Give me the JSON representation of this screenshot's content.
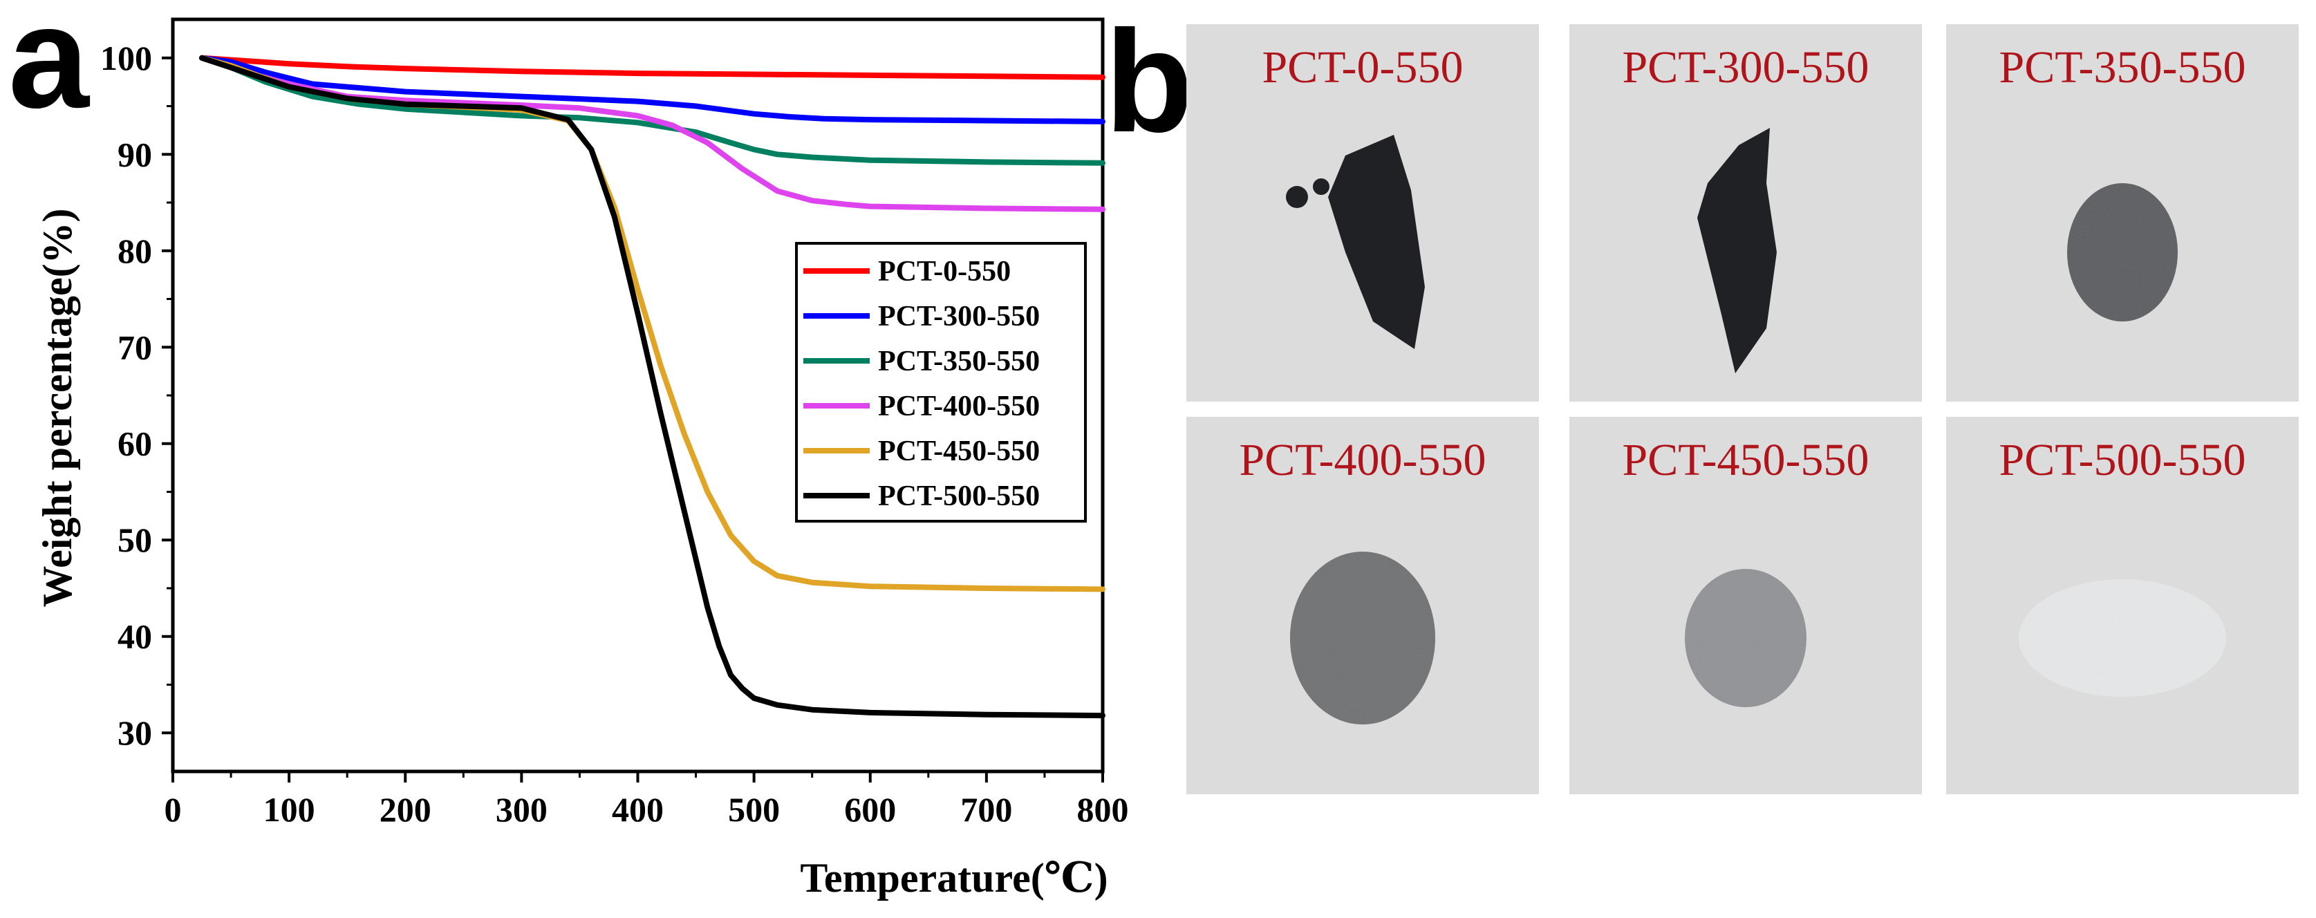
{
  "panel_a_label": "a",
  "panel_b_label": "b",
  "chart_data": {
    "type": "line",
    "title": "",
    "xlabel": "Temperature(℃)",
    "ylabel": "Weight percentage(%)",
    "xlim": [
      0,
      800
    ],
    "ylim": [
      26,
      104
    ],
    "xticks": [
      0,
      100,
      200,
      300,
      400,
      500,
      600,
      700,
      800
    ],
    "yticks": [
      30,
      40,
      50,
      60,
      70,
      80,
      90,
      100
    ],
    "grid": false,
    "legend_position": "center-right",
    "series": [
      {
        "name": "PCT-0-550",
        "color": "#ff0000",
        "x": [
          25,
          50,
          100,
          150,
          200,
          300,
          400,
          500,
          600,
          700,
          800
        ],
        "y": [
          100,
          99.8,
          99.4,
          99.1,
          98.9,
          98.6,
          98.4,
          98.3,
          98.2,
          98.1,
          98.0
        ]
      },
      {
        "name": "PCT-300-550",
        "color": "#0000ff",
        "x": [
          25,
          50,
          80,
          120,
          200,
          300,
          400,
          450,
          500,
          530,
          560,
          600,
          700,
          800
        ],
        "y": [
          100,
          99.6,
          98.5,
          97.3,
          96.5,
          96.0,
          95.5,
          95.0,
          94.2,
          93.9,
          93.7,
          93.6,
          93.5,
          93.4
        ]
      },
      {
        "name": "PCT-350-550",
        "color": "#008060",
        "x": [
          25,
          50,
          80,
          120,
          160,
          200,
          300,
          350,
          400,
          450,
          480,
          500,
          520,
          550,
          600,
          700,
          800
        ],
        "y": [
          100,
          99.0,
          97.5,
          96.0,
          95.2,
          94.7,
          94.0,
          93.8,
          93.3,
          92.3,
          91.2,
          90.5,
          90.0,
          89.7,
          89.4,
          89.2,
          89.1
        ]
      },
      {
        "name": "PCT-400-550",
        "color": "#dd44ee",
        "x": [
          25,
          60,
          100,
          150,
          200,
          300,
          350,
          400,
          430,
          460,
          490,
          520,
          550,
          580,
          600,
          700,
          800
        ],
        "y": [
          100,
          98.6,
          97.3,
          96.0,
          95.6,
          95.1,
          94.8,
          94.0,
          93.0,
          91.2,
          88.5,
          86.2,
          85.2,
          84.8,
          84.6,
          84.4,
          84.3
        ]
      },
      {
        "name": "PCT-450-550",
        "color": "#e0a427",
        "x": [
          25,
          50,
          100,
          150,
          200,
          300,
          340,
          360,
          380,
          400,
          420,
          440,
          460,
          480,
          500,
          520,
          550,
          600,
          700,
          800
        ],
        "y": [
          100,
          99.2,
          97.0,
          95.8,
          95.2,
          94.6,
          93.5,
          90.5,
          84.5,
          76.0,
          68.0,
          61.0,
          55.0,
          50.5,
          47.8,
          46.3,
          45.6,
          45.2,
          45.0,
          44.9
        ]
      },
      {
        "name": "PCT-500-550",
        "color": "#000000",
        "x": [
          25,
          50,
          100,
          150,
          200,
          300,
          340,
          360,
          380,
          400,
          420,
          440,
          460,
          470,
          480,
          490,
          500,
          520,
          550,
          600,
          700,
          800
        ],
        "y": [
          100,
          99.0,
          97.0,
          95.8,
          95.2,
          94.8,
          93.6,
          90.5,
          83.5,
          73.5,
          63.0,
          53.0,
          43.0,
          39.0,
          36.0,
          34.6,
          33.6,
          32.9,
          32.4,
          32.1,
          31.9,
          31.8
        ]
      }
    ]
  },
  "photos": [
    {
      "label": "PCT-0-550",
      "sample": "black-powder"
    },
    {
      "label": "PCT-300-550",
      "sample": "black-powder"
    },
    {
      "label": "PCT-350-550",
      "sample": "dark-gray-powder"
    },
    {
      "label": "PCT-400-550",
      "sample": "gray-powder"
    },
    {
      "label": "PCT-450-550",
      "sample": "light-gray-powder"
    },
    {
      "label": "PCT-500-550",
      "sample": "white-powder"
    }
  ]
}
